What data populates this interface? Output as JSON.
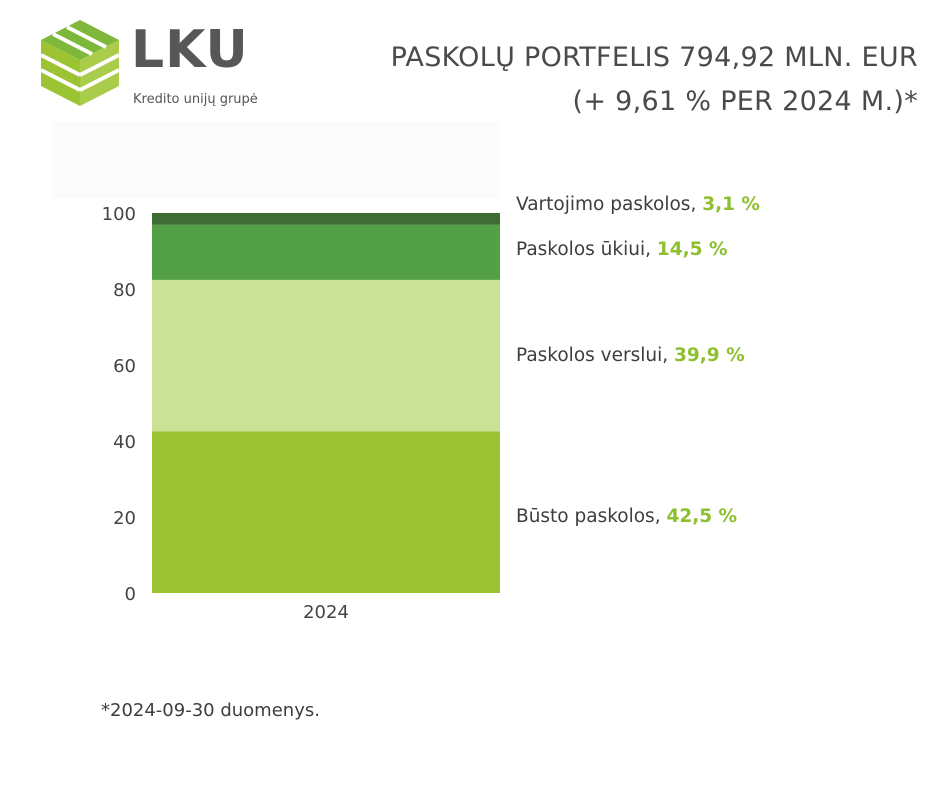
{
  "logo": {
    "name": "LKU",
    "tagline": "Kredito unijų grupė"
  },
  "title": {
    "line1": "PASKOLŲ PORTFELIS 794,92 MLN. EUR",
    "line2": "(+ 9,61 % PER 2024 M.)*"
  },
  "chart_data": {
    "type": "bar",
    "stacked": true,
    "categories": [
      "2024"
    ],
    "series": [
      {
        "name": "Būsto paskolos",
        "label_value": "42,5 %",
        "values": [
          42.5
        ],
        "color": "#9cc334"
      },
      {
        "name": "Paskolos verslui",
        "label_value": "39,9 %",
        "values": [
          39.9
        ],
        "color": "#cbe196"
      },
      {
        "name": "Paskolos ūkiui",
        "label_value": "14,5 %",
        "values": [
          14.5
        ],
        "color": "#54a046"
      },
      {
        "name": "Vartojimo paskolos",
        "label_value": "3,1 %",
        "values": [
          3.1
        ],
        "color": "#3f6b35"
      }
    ],
    "ylim": [
      0,
      100
    ],
    "yticks": [
      "0",
      "20",
      "40",
      "60",
      "80",
      "100"
    ],
    "grid": false,
    "legend": "right"
  },
  "footnote": "*2024-09-30 duomenys.",
  "colors": {
    "accent": "#8dbf2f",
    "text": "#3d3d3d"
  }
}
